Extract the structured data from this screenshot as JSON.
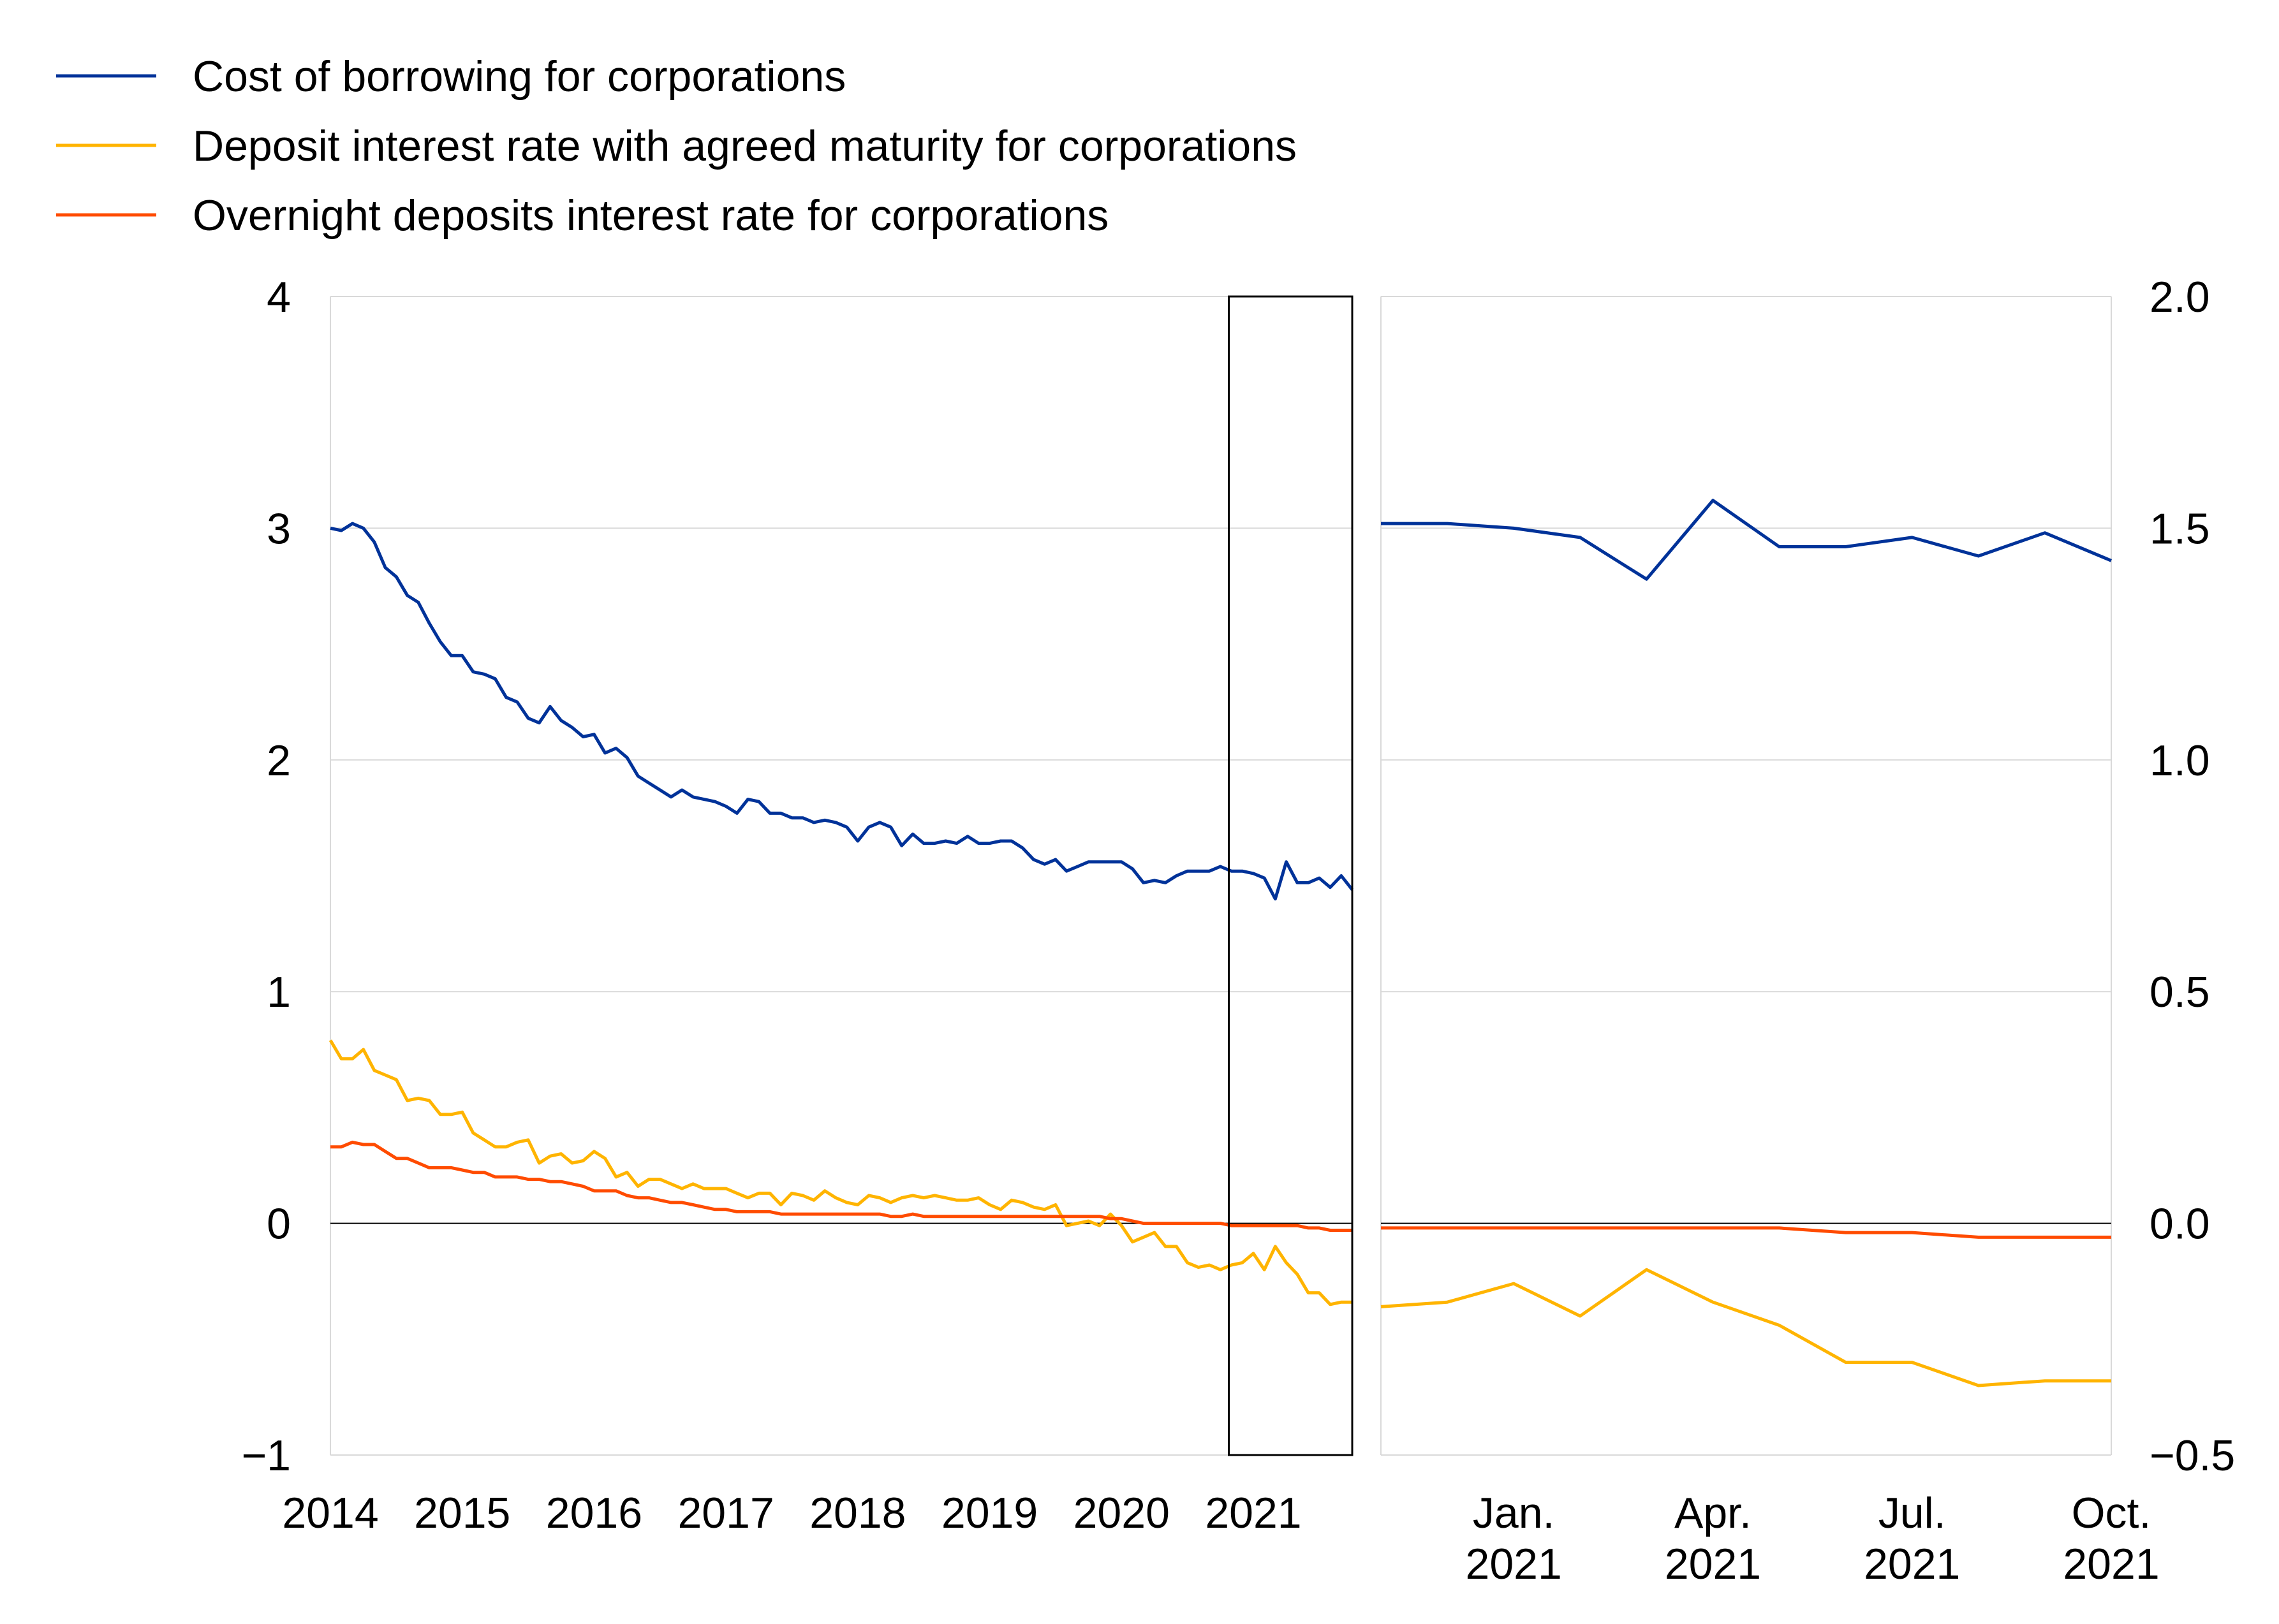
{
  "legend": [
    {
      "label": "Cost of borrowing for corporations",
      "color": "#003299"
    },
    {
      "label": "Deposit interest rate with agreed maturity for corporations",
      "color": "#FFB400"
    },
    {
      "label": "Overnight deposits interest rate for corporations",
      "color": "#FF4B00"
    }
  ],
  "chart_data": [
    {
      "type": "line",
      "title": "",
      "xlabel": "",
      "ylabel": "",
      "x_ticks": [
        "2014",
        "2015",
        "2016",
        "2017",
        "2018",
        "2019",
        "2020",
        "2021"
      ],
      "y_ticks": [
        "4",
        "3",
        "2",
        "1",
        "0",
        "−1"
      ],
      "xlim": [
        2014.0,
        2021.75
      ],
      "ylim": [
        -1,
        4
      ],
      "grid": true,
      "legend_position": "top-left",
      "highlight_box": {
        "x_from": "2020-11",
        "x_to": "2021-10"
      },
      "series": [
        {
          "name": "Cost of borrowing for corporations",
          "color": "#003299",
          "values": [
            3.0,
            2.99,
            3.02,
            3.0,
            2.94,
            2.83,
            2.79,
            2.71,
            2.68,
            2.59,
            2.51,
            2.45,
            2.45,
            2.38,
            2.37,
            2.35,
            2.27,
            2.25,
            2.18,
            2.16,
            2.23,
            2.17,
            2.14,
            2.1,
            2.11,
            2.03,
            2.05,
            2.01,
            1.93,
            1.9,
            1.87,
            1.84,
            1.87,
            1.84,
            1.83,
            1.82,
            1.8,
            1.77,
            1.83,
            1.82,
            1.77,
            1.77,
            1.75,
            1.75,
            1.73,
            1.74,
            1.73,
            1.71,
            1.65,
            1.71,
            1.73,
            1.71,
            1.63,
            1.68,
            1.64,
            1.64,
            1.65,
            1.64,
            1.67,
            1.64,
            1.64,
            1.65,
            1.65,
            1.62,
            1.57,
            1.55,
            1.57,
            1.52,
            1.54,
            1.56,
            1.56,
            1.56,
            1.56,
            1.53,
            1.47,
            1.48,
            1.47,
            1.5,
            1.52,
            1.52,
            1.52,
            1.54,
            1.52,
            1.52,
            1.51,
            1.49,
            1.4,
            1.56,
            1.47,
            1.47,
            1.49,
            1.45,
            1.5,
            1.44
          ]
        },
        {
          "name": "Deposit interest rate with agreed maturity for corporations",
          "color": "#FFB400",
          "values": [
            0.79,
            0.71,
            0.71,
            0.75,
            0.66,
            0.64,
            0.62,
            0.53,
            0.54,
            0.53,
            0.47,
            0.47,
            0.48,
            0.39,
            0.36,
            0.33,
            0.33,
            0.35,
            0.36,
            0.26,
            0.29,
            0.3,
            0.26,
            0.27,
            0.31,
            0.28,
            0.2,
            0.22,
            0.16,
            0.19,
            0.19,
            0.17,
            0.15,
            0.17,
            0.15,
            0.15,
            0.15,
            0.13,
            0.11,
            0.13,
            0.13,
            0.08,
            0.13,
            0.12,
            0.1,
            0.14,
            0.11,
            0.09,
            0.08,
            0.12,
            0.11,
            0.09,
            0.11,
            0.12,
            0.11,
            0.12,
            0.11,
            0.1,
            0.1,
            0.11,
            0.08,
            0.06,
            0.1,
            0.09,
            0.07,
            0.06,
            0.08,
            -0.01,
            0.0,
            0.01,
            -0.01,
            0.04,
            -0.01,
            -0.08,
            -0.06,
            -0.04,
            -0.1,
            -0.1,
            -0.17,
            -0.19,
            -0.18,
            -0.2,
            -0.18,
            -0.17,
            -0.13,
            -0.2,
            -0.1,
            -0.17,
            -0.22,
            -0.3,
            -0.3,
            -0.35,
            -0.34,
            -0.34
          ]
        },
        {
          "name": "Overnight deposits interest rate for corporations",
          "color": "#FF4B00",
          "values": [
            0.33,
            0.33,
            0.35,
            0.34,
            0.34,
            0.31,
            0.28,
            0.28,
            0.26,
            0.24,
            0.24,
            0.24,
            0.23,
            0.22,
            0.22,
            0.2,
            0.2,
            0.2,
            0.19,
            0.19,
            0.18,
            0.18,
            0.17,
            0.16,
            0.14,
            0.14,
            0.14,
            0.12,
            0.11,
            0.11,
            0.1,
            0.09,
            0.09,
            0.08,
            0.07,
            0.06,
            0.06,
            0.05,
            0.05,
            0.05,
            0.05,
            0.04,
            0.04,
            0.04,
            0.04,
            0.04,
            0.04,
            0.04,
            0.04,
            0.04,
            0.04,
            0.03,
            0.03,
            0.04,
            0.03,
            0.03,
            0.03,
            0.03,
            0.03,
            0.03,
            0.03,
            0.03,
            0.03,
            0.03,
            0.03,
            0.03,
            0.03,
            0.03,
            0.03,
            0.03,
            0.03,
            0.02,
            0.02,
            0.01,
            0.0,
            0.0,
            0.0,
            0.0,
            0.0,
            0.0,
            0.0,
            0.0,
            -0.01,
            -0.01,
            -0.01,
            -0.01,
            -0.01,
            -0.01,
            -0.01,
            -0.02,
            -0.02,
            -0.03,
            -0.03,
            -0.03
          ]
        }
      ]
    },
    {
      "type": "line",
      "title": "",
      "xlabel": "",
      "ylabel": "",
      "categories": [
        "2020-11",
        "2020-12",
        "2021-01",
        "2021-02",
        "2021-03",
        "2021-04",
        "2021-05",
        "2021-06",
        "2021-07",
        "2021-08",
        "2021-09",
        "2021-10"
      ],
      "x_ticks": [
        {
          "at": "2021-01",
          "line1": "Jan.",
          "line2": "2021"
        },
        {
          "at": "2021-04",
          "line1": "Apr.",
          "line2": "2021"
        },
        {
          "at": "2021-07",
          "line1": "Jul.",
          "line2": "2021"
        },
        {
          "at": "2021-10",
          "line1": "Oct.",
          "line2": "2021"
        }
      ],
      "y_ticks": [
        "2.0",
        "1.5",
        "1.0",
        "0.5",
        "0.0",
        "−0.5"
      ],
      "ylim": [
        -0.5,
        2.0
      ],
      "y_axis_side": "right",
      "grid": true,
      "series": [
        {
          "name": "Cost of borrowing for corporations",
          "color": "#003299",
          "values": [
            1.51,
            1.51,
            1.5,
            1.48,
            1.39,
            1.56,
            1.46,
            1.46,
            1.48,
            1.44,
            1.49,
            1.43
          ]
        },
        {
          "name": "Deposit interest rate with agreed maturity for corporations",
          "color": "#FFB400",
          "values": [
            -0.18,
            -0.17,
            -0.13,
            -0.2,
            -0.1,
            -0.17,
            -0.22,
            -0.3,
            -0.3,
            -0.35,
            -0.34,
            -0.34
          ]
        },
        {
          "name": "Overnight deposits interest rate for corporations",
          "color": "#FF4B00",
          "values": [
            -0.01,
            -0.01,
            -0.01,
            -0.01,
            -0.01,
            -0.01,
            -0.01,
            -0.02,
            -0.02,
            -0.03,
            -0.03,
            -0.03
          ]
        }
      ]
    }
  ]
}
